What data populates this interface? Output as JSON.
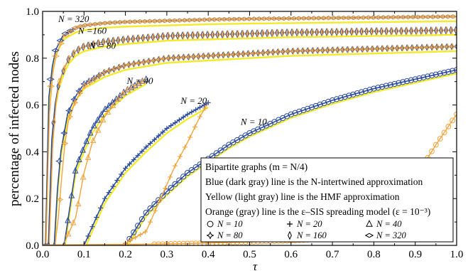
{
  "chart_data": {
    "type": "line",
    "title": "",
    "xlabel": "τ",
    "ylabel": "percentage of infected nodes",
    "xlim": [
      0,
      1.0
    ],
    "ylim": [
      0,
      1.0
    ],
    "x_ticks": [
      "0.0",
      "0.1",
      "0.2",
      "0.3",
      "0.4",
      "0.5",
      "0.6",
      "0.7",
      "0.8",
      "0.9",
      "1.0"
    ],
    "y_ticks": [
      "0.0",
      "0.2",
      "0.4",
      "0.6",
      "0.8",
      "1.0"
    ],
    "grid": false,
    "colors": {
      "blue": "#2c4a9e",
      "yellow": "#f3ea2b",
      "orange": "#f2a33a"
    },
    "curve_labels": [
      {
        "text": "N = 320",
        "x": 0.075,
        "y": 0.955,
        "color": "#000000"
      },
      {
        "text": "N =160",
        "x": 0.12,
        "y": 0.905,
        "color": "#000000"
      },
      {
        "text": "N = 80",
        "x": 0.145,
        "y": 0.84,
        "color": "#000000"
      },
      {
        "text": "N = 40",
        "x": 0.235,
        "y": 0.69,
        "color": "#000000"
      },
      {
        "text": "N = 20",
        "x": 0.365,
        "y": 0.605,
        "color": "#000000"
      },
      {
        "text": "N = 10",
        "x": 0.51,
        "y": 0.515,
        "color": "#000000"
      },
      {
        "text": "N = 10",
        "x": 0.865,
        "y": 0.245,
        "color": "#f2a33a"
      }
    ],
    "series": [
      {
        "N": 10,
        "marker": "circle",
        "blue": {
          "x0": 0.2,
          "x": [
            0.2,
            0.25,
            0.3,
            0.35,
            0.4,
            0.45,
            0.5,
            0.6,
            0.7,
            0.8,
            0.9,
            1.0
          ],
          "y": [
            0.0,
            0.14,
            0.23,
            0.31,
            0.37,
            0.43,
            0.48,
            0.56,
            0.62,
            0.67,
            0.71,
            0.75
          ]
        },
        "orange": {
          "x": [
            0.0,
            0.1,
            0.2,
            0.3,
            0.4,
            0.5,
            0.6,
            0.7,
            0.75,
            0.8,
            0.85,
            0.9,
            0.95,
            1.0
          ],
          "y": [
            0.0,
            0.0,
            0.003,
            0.006,
            0.01,
            0.015,
            0.02,
            0.03,
            0.04,
            0.08,
            0.17,
            0.29,
            0.43,
            0.56
          ]
        }
      },
      {
        "N": 20,
        "marker": "plus",
        "blue": {
          "x": [
            0.1,
            0.15,
            0.2,
            0.25,
            0.3,
            0.35,
            0.4
          ],
          "y": [
            0.0,
            0.2,
            0.33,
            0.42,
            0.5,
            0.56,
            0.61
          ]
        },
        "orange": {
          "x": [
            0.2,
            0.25,
            0.28,
            0.3,
            0.32,
            0.35,
            0.38,
            0.4
          ],
          "y": [
            0.01,
            0.06,
            0.18,
            0.26,
            0.34,
            0.44,
            0.55,
            0.61
          ]
        }
      },
      {
        "N": 40,
        "marker": "triangle",
        "blue": {
          "x": [
            0.052,
            0.08,
            0.1,
            0.12,
            0.15,
            0.2,
            0.25
          ],
          "y": [
            0.0,
            0.33,
            0.42,
            0.5,
            0.58,
            0.66,
            0.71
          ]
        },
        "orange": {
          "x": [
            0.05,
            0.08,
            0.1,
            0.12,
            0.15,
            0.18,
            0.2,
            0.25
          ],
          "y": [
            0.0,
            0.12,
            0.31,
            0.44,
            0.55,
            0.62,
            0.66,
            0.71
          ]
        }
      },
      {
        "N": 80,
        "marker": "star",
        "blue": {
          "x": [
            0.028,
            0.04,
            0.06,
            0.08,
            0.1,
            0.15,
            0.2,
            0.3,
            0.4,
            0.5,
            0.6,
            0.7,
            0.8,
            0.9,
            1.0
          ],
          "y": [
            0.0,
            0.36,
            0.56,
            0.64,
            0.69,
            0.74,
            0.77,
            0.8,
            0.81,
            0.82,
            0.83,
            0.835,
            0.84,
            0.845,
            0.85
          ]
        },
        "orange": {
          "x": [
            0.03,
            0.04,
            0.05,
            0.06,
            0.08,
            0.1,
            0.15,
            0.2,
            0.3,
            0.4,
            0.5,
            0.6,
            0.7,
            0.8,
            0.9,
            1.0
          ],
          "y": [
            0.0,
            0.15,
            0.38,
            0.52,
            0.62,
            0.68,
            0.74,
            0.77,
            0.8,
            0.81,
            0.82,
            0.83,
            0.835,
            0.84,
            0.845,
            0.85
          ]
        }
      },
      {
        "N": 160,
        "marker": "thin-diamond",
        "blue": {
          "x": [
            0.014,
            0.02,
            0.03,
            0.04,
            0.06,
            0.08,
            0.1,
            0.15,
            0.2,
            0.3,
            0.4,
            0.5,
            0.6,
            0.7,
            0.8,
            0.9,
            1.0
          ],
          "y": [
            0.0,
            0.41,
            0.6,
            0.7,
            0.79,
            0.83,
            0.85,
            0.87,
            0.88,
            0.895,
            0.9,
            0.905,
            0.91,
            0.912,
            0.915,
            0.917,
            0.92
          ]
        },
        "orange": {
          "x": [
            0.016,
            0.02,
            0.025,
            0.03,
            0.04,
            0.06,
            0.08,
            0.1,
            0.15,
            0.2,
            0.3,
            0.4,
            0.5,
            0.6,
            0.7,
            0.8,
            0.9,
            1.0
          ],
          "y": [
            0.0,
            0.25,
            0.45,
            0.58,
            0.7,
            0.79,
            0.83,
            0.85,
            0.87,
            0.88,
            0.895,
            0.9,
            0.905,
            0.91,
            0.912,
            0.915,
            0.917,
            0.92
          ]
        }
      },
      {
        "N": 320,
        "marker": "wide-diamond",
        "blue": {
          "x": [
            0.007,
            0.01,
            0.015,
            0.02,
            0.03,
            0.05,
            0.08,
            0.1,
            0.15,
            0.2,
            0.3,
            0.4,
            0.5,
            0.6,
            0.7,
            0.8,
            0.9,
            1.0
          ],
          "y": [
            0.0,
            0.44,
            0.63,
            0.73,
            0.83,
            0.9,
            0.93,
            0.94,
            0.95,
            0.955,
            0.96,
            0.965,
            0.968,
            0.97,
            0.972,
            0.974,
            0.976,
            0.978
          ]
        },
        "orange": {
          "x": [
            0.008,
            0.012,
            0.016,
            0.02,
            0.03,
            0.05,
            0.08,
            0.1,
            0.15,
            0.2,
            0.3,
            0.4,
            0.5,
            0.6,
            0.7,
            0.8,
            0.9,
            1.0
          ],
          "y": [
            0.0,
            0.3,
            0.55,
            0.68,
            0.8,
            0.89,
            0.93,
            0.94,
            0.95,
            0.955,
            0.96,
            0.965,
            0.968,
            0.97,
            0.972,
            0.974,
            0.976,
            0.978
          ]
        }
      }
    ],
    "legend": {
      "position": "bottom-right",
      "lines": [
        "Bipartite graphs (m = N/4)",
        "Blue (dark gray) line  is the N-intertwined approximation",
        "Yellow (light gray) line is the HMF approximation",
        "Orange (gray) line is the ε–SIS spreading model (ε = 10⁻³)"
      ],
      "markers": [
        {
          "symbol": "circle",
          "label": "N = 10"
        },
        {
          "symbol": "plus",
          "label": "N = 20"
        },
        {
          "symbol": "triangle",
          "label": "N = 40"
        },
        {
          "symbol": "star",
          "label": "N = 80"
        },
        {
          "symbol": "thin-diamond",
          "label": "N = 160"
        },
        {
          "symbol": "wide-diamond",
          "label": "N = 320"
        }
      ]
    }
  }
}
